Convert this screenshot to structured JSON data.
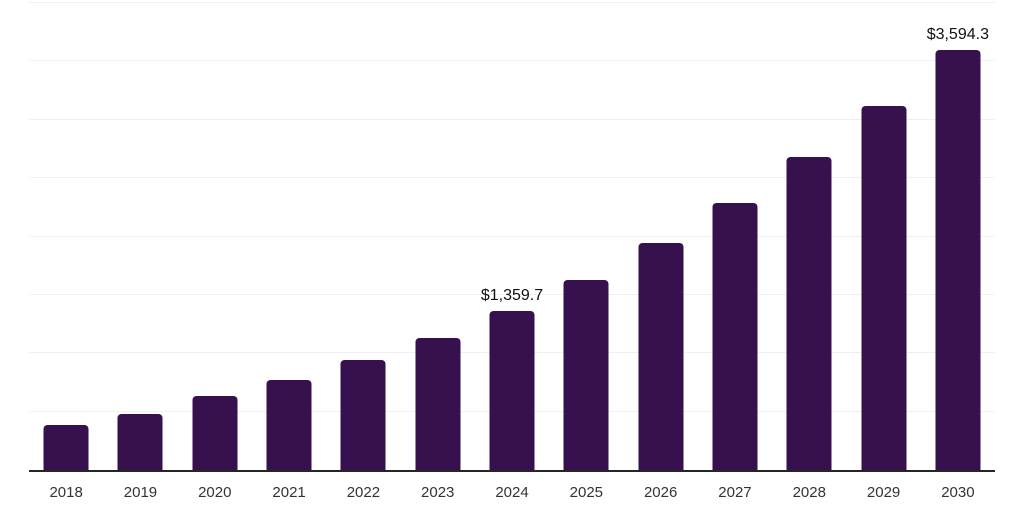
{
  "chart_data": {
    "type": "bar",
    "title": "",
    "xlabel": "",
    "ylabel": "",
    "categories": [
      "2018",
      "2019",
      "2020",
      "2021",
      "2022",
      "2023",
      "2024",
      "2025",
      "2026",
      "2027",
      "2028",
      "2029",
      "2030"
    ],
    "values": [
      385,
      480,
      637,
      771,
      944,
      1130,
      1359.7,
      1628,
      1943,
      2285,
      2680,
      3118,
      3594.3
    ],
    "labels": [
      "",
      "",
      "",
      "",
      "",
      "",
      "$1,359.7",
      "",
      "",
      "",
      "",
      "",
      "$3,594.3"
    ],
    "ylim": [
      0,
      4000
    ],
    "grid_step": 500,
    "grid": true,
    "legend": false,
    "bar_color": "#36114D",
    "axis_color": "#262626",
    "grid_color": "#f0f0f0",
    "tick_color": "#333333",
    "label_color": "#111111"
  }
}
